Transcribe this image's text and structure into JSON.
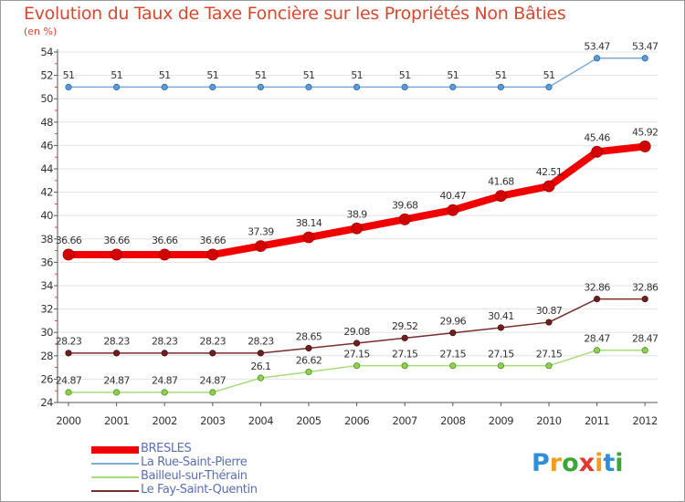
{
  "title": "Evolution du Taux de Taxe Foncière sur les Propriétés Non Bâties",
  "subtitle": "(en %)",
  "colors": {
    "BRESLES": "#f00000",
    "La Rue-Saint-Pierre": "#7fa9d6",
    "Bailleul-sur-Thérain": "#a6dd7a",
    "Le Fay-Saint-Quentin": "#7a2d2d",
    "text": "#d6492f",
    "legend_text": "#5b6fb3"
  },
  "legend": [
    "BRESLES",
    "La Rue-Saint-Pierre",
    "Bailleul-sur-Thérain",
    "Le Fay-Saint-Quentin"
  ],
  "logo": {
    "text": "Proxiti",
    "letters": [
      "P",
      "r",
      "o",
      "x",
      "i",
      "t",
      "i"
    ],
    "colors": [
      "#2f8fd8",
      "#f39c1e",
      "#3aa635",
      "#e6352b",
      "#f39c1e",
      "#2f8fd8",
      "#3aa635"
    ]
  },
  "chart_data": {
    "type": "line",
    "x": [
      2000,
      2001,
      2002,
      2003,
      2004,
      2005,
      2006,
      2007,
      2008,
      2009,
      2010,
      2011,
      2012
    ],
    "ylim": [
      24,
      54
    ],
    "yticks": [
      24,
      26,
      28,
      30,
      32,
      34,
      36,
      38,
      40,
      42,
      44,
      46,
      48,
      50,
      52,
      54
    ],
    "series": [
      {
        "name": "La Rue-Saint-Pierre",
        "values": [
          51,
          51,
          51,
          51,
          51,
          51,
          51,
          51,
          51,
          51,
          51,
          53.47,
          53.47
        ],
        "labels": [
          "51",
          "51",
          "51",
          "51",
          "51",
          "51",
          "51",
          "51",
          "51",
          "51",
          "51",
          "53.47",
          "53.47"
        ]
      },
      {
        "name": "BRESLES",
        "values": [
          36.66,
          36.66,
          36.66,
          36.66,
          37.39,
          38.14,
          38.9,
          39.68,
          40.47,
          41.68,
          42.51,
          45.46,
          45.92
        ],
        "labels": [
          "36.66",
          "36.66",
          "36.66",
          "36.66",
          "37.39",
          "38.14",
          "38.9",
          "39.68",
          "40.47",
          "41.68",
          "42.51",
          "45.46",
          "45.92"
        ]
      },
      {
        "name": "Le Fay-Saint-Quentin",
        "values": [
          28.23,
          28.23,
          28.23,
          28.23,
          28.23,
          28.65,
          29.08,
          29.52,
          29.96,
          30.41,
          30.87,
          32.86,
          32.86
        ],
        "labels": [
          "28.23",
          "28.23",
          "28.23",
          "28.23",
          "28.23",
          "28.65",
          "29.08",
          "29.52",
          "29.96",
          "30.41",
          "30.87",
          "32.86",
          "32.86"
        ]
      },
      {
        "name": "Bailleul-sur-Thérain",
        "values": [
          24.87,
          24.87,
          24.87,
          24.87,
          26.1,
          26.62,
          27.15,
          27.15,
          27.15,
          27.15,
          27.15,
          28.47,
          28.47
        ],
        "labels": [
          "24.87",
          "24.87",
          "24.87",
          "24.87",
          "26.1",
          "26.62",
          "27.15",
          "27.15",
          "27.15",
          "27.15",
          "27.15",
          "28.47",
          "28.47"
        ]
      }
    ]
  }
}
